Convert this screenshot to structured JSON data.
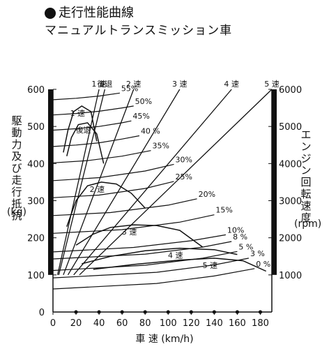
{
  "title": {
    "line1": "走行性能曲線",
    "line2": "マニュアルトランスミッション車"
  },
  "chart_data": {
    "type": "line",
    "title": "走行性能曲線",
    "subtitle": "マニュアルトランスミッション車",
    "xlabel": "車 速 (km/h)",
    "ylabel_left": "駆動力及び走行抵抗",
    "ylabel_left_unit": "(kg)",
    "ylabel_right": "エンジン回転速度",
    "ylabel_right_unit": "(rpm)",
    "xlim": [
      0,
      190
    ],
    "ylim": [
      0,
      600
    ],
    "ylim_right": [
      0,
      6000
    ],
    "x_ticks": [
      0,
      20,
      40,
      60,
      80,
      100,
      120,
      140,
      160,
      180
    ],
    "y_ticks": [
      0,
      100,
      200,
      300,
      400,
      500,
      600
    ],
    "y_ticks_right": [
      1000,
      2000,
      3000,
      4000,
      5000,
      6000
    ],
    "marker_x": [
      20,
      40,
      60,
      80,
      100,
      120,
      140,
      160,
      180
    ],
    "grid": false,
    "drive_force_curves": [
      {
        "name": "1 速",
        "points": [
          [
            9,
            430
          ],
          [
            13,
            490
          ],
          [
            18,
            540
          ],
          [
            25,
            555
          ],
          [
            33,
            540
          ],
          [
            38,
            460
          ]
        ]
      },
      {
        "name": "後退",
        "points": [
          [
            12,
            420
          ],
          [
            16,
            470
          ],
          [
            22,
            505
          ],
          [
            30,
            510
          ],
          [
            38,
            480
          ],
          [
            44,
            400
          ]
        ]
      },
      {
        "name": "2 速",
        "points": [
          [
            12,
            230
          ],
          [
            20,
            300
          ],
          [
            30,
            340
          ],
          [
            42,
            350
          ],
          [
            55,
            345
          ],
          [
            68,
            320
          ],
          [
            80,
            280
          ]
        ]
      },
      {
        "name": "3 速",
        "points": [
          [
            20,
            180
          ],
          [
            35,
            210
          ],
          [
            50,
            228
          ],
          [
            70,
            235
          ],
          [
            90,
            233
          ],
          [
            110,
            220
          ],
          [
            130,
            175
          ]
        ]
      },
      {
        "name": "4 速",
        "points": [
          [
            25,
            130
          ],
          [
            50,
            150
          ],
          [
            80,
            165
          ],
          [
            110,
            172
          ],
          [
            140,
            168
          ],
          [
            160,
            155
          ]
        ]
      },
      {
        "name": "5 速",
        "points": [
          [
            35,
            115
          ],
          [
            70,
            128
          ],
          [
            110,
            140
          ],
          [
            140,
            145
          ],
          [
            165,
            138
          ],
          [
            185,
            110
          ]
        ]
      }
    ],
    "resistance_curves": [
      {
        "name": "55%",
        "points": [
          [
            0,
            572
          ],
          [
            20,
            576
          ],
          [
            40,
            582
          ],
          [
            58,
            590
          ]
        ]
      },
      {
        "name": "50%",
        "points": [
          [
            0,
            531
          ],
          [
            20,
            535
          ],
          [
            40,
            541
          ],
          [
            60,
            550
          ],
          [
            70,
            555
          ]
        ]
      },
      {
        "name": "45%",
        "points": [
          [
            0,
            490
          ],
          [
            20,
            494
          ],
          [
            40,
            500
          ],
          [
            60,
            510
          ],
          [
            68,
            515
          ]
        ]
      },
      {
        "name": "40 %",
        "points": [
          [
            0,
            446
          ],
          [
            20,
            450
          ],
          [
            40,
            456
          ],
          [
            60,
            466
          ],
          [
            75,
            475
          ]
        ]
      },
      {
        "name": "35%",
        "points": [
          [
            0,
            402
          ],
          [
            30,
            408
          ],
          [
            60,
            420
          ],
          [
            85,
            435
          ]
        ]
      },
      {
        "name": "30%",
        "points": [
          [
            0,
            354
          ],
          [
            40,
            362
          ],
          [
            80,
            380
          ],
          [
            105,
            398
          ]
        ]
      },
      {
        "name": "25%",
        "points": [
          [
            0,
            308
          ],
          [
            40,
            315
          ],
          [
            80,
            333
          ],
          [
            105,
            352
          ]
        ]
      },
      {
        "name": "20%",
        "points": [
          [
            0,
            260
          ],
          [
            50,
            268
          ],
          [
            100,
            288
          ],
          [
            125,
            305
          ]
        ]
      },
      {
        "name": "15%",
        "points": [
          [
            0,
            212
          ],
          [
            60,
            222
          ],
          [
            110,
            242
          ],
          [
            140,
            262
          ]
        ]
      },
      {
        "name": "10%",
        "points": [
          [
            0,
            162
          ],
          [
            70,
            174
          ],
          [
            120,
            192
          ],
          [
            150,
            208
          ]
        ]
      },
      {
        "name": "8 %",
        "points": [
          [
            0,
            143
          ],
          [
            80,
            156
          ],
          [
            130,
            175
          ],
          [
            155,
            190
          ]
        ]
      },
      {
        "name": "5 %",
        "points": [
          [
            0,
            112
          ],
          [
            80,
            126
          ],
          [
            130,
            145
          ],
          [
            160,
            163
          ]
        ]
      },
      {
        "name": "3 %",
        "points": [
          [
            0,
            92
          ],
          [
            90,
            107
          ],
          [
            140,
            127
          ],
          [
            170,
            145
          ]
        ]
      },
      {
        "name": "0 %",
        "points": [
          [
            0,
            62
          ],
          [
            90,
            77
          ],
          [
            140,
            97
          ],
          [
            175,
            117
          ]
        ]
      }
    ],
    "gear_lines": [
      {
        "name": "1 速",
        "start": [
          4,
          1000
        ],
        "end": [
          40,
          6000
        ]
      },
      {
        "name": "後退",
        "start": [
          5,
          1000
        ],
        "end": [
          45,
          6000
        ]
      },
      {
        "name": "2 速",
        "start": [
          9,
          1000
        ],
        "end": [
          70,
          6000
        ]
      },
      {
        "name": "3 速",
        "start": [
          13,
          1000
        ],
        "end": [
          110,
          6000
        ]
      },
      {
        "name": "4 速",
        "start": [
          18,
          1000
        ],
        "end": [
          155,
          6000
        ]
      },
      {
        "name": "5 速",
        "start": [
          23,
          1000
        ],
        "end": [
          190,
          6000
        ]
      }
    ]
  }
}
